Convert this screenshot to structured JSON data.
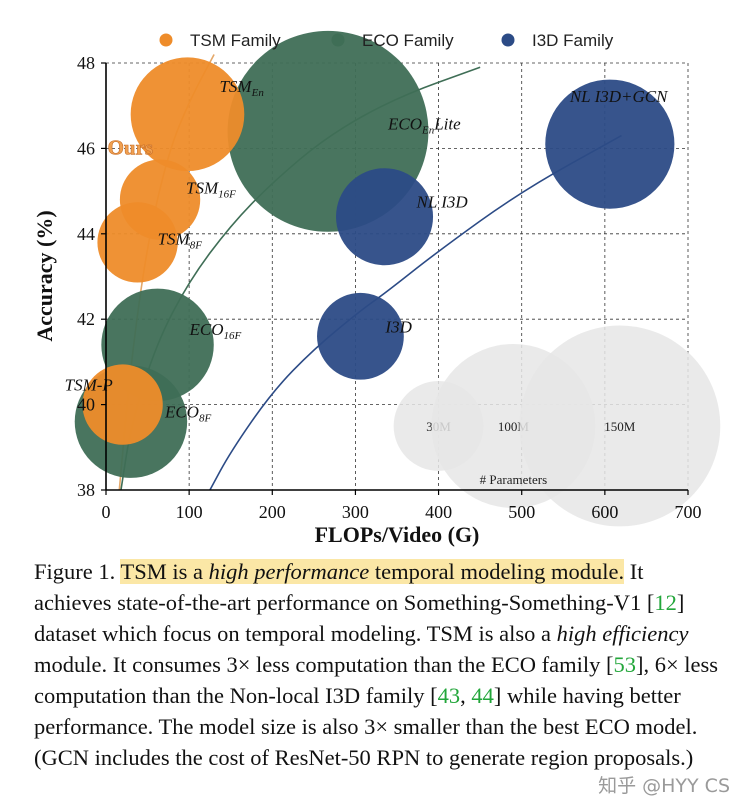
{
  "chart_data": {
    "type": "scatter",
    "xlabel": "FLOPs/Video (G)",
    "ylabel": "Accuracy (%)",
    "xlim": [
      0,
      700
    ],
    "ylim": [
      38,
      48
    ],
    "xticks": [
      0,
      100,
      200,
      300,
      400,
      500,
      600,
      700
    ],
    "yticks": [
      38,
      40,
      42,
      44,
      46,
      48
    ],
    "grid": true,
    "legend_position": "top",
    "series": [
      {
        "name": "TSM Family",
        "color": "#ee8c2a",
        "points": [
          {
            "label": "TSM-P",
            "label_main": "TSM-P",
            "label_sub": "",
            "x": 20,
            "y": 40.0,
            "params_m": 24
          },
          {
            "label": "TSM8F",
            "label_main": "TSM",
            "label_sub": "8F",
            "x": 38,
            "y": 43.8,
            "params_m": 24
          },
          {
            "label": "TSM16F",
            "label_main": "TSM",
            "label_sub": "16F",
            "x": 65,
            "y": 44.8,
            "params_m": 24
          },
          {
            "label": "TSMEn",
            "label_main": "TSM",
            "label_sub": "En",
            "x": 98,
            "y": 46.8,
            "params_m": 48
          }
        ]
      },
      {
        "name": "ECO Family",
        "color": "#3f6e56",
        "points": [
          {
            "label": "ECO8F",
            "label_main": "ECO",
            "label_sub": "8F",
            "x": 30,
            "y": 39.6,
            "params_m": 47
          },
          {
            "label": "ECO16F",
            "label_main": "ECO",
            "label_sub": "16F",
            "x": 62,
            "y": 41.4,
            "params_m": 47
          },
          {
            "label": "ECOEnLite",
            "label_main": "ECO",
            "label_sub": "En",
            "label_tail": "Lite",
            "x": 267,
            "y": 46.4,
            "params_m": 150
          }
        ]
      },
      {
        "name": "I3D Family",
        "color": "#2c4b86",
        "points": [
          {
            "label": "I3D",
            "label_main": "I3D",
            "label_sub": "",
            "x": 306,
            "y": 41.6,
            "params_m": 28
          },
          {
            "label": "NL I3D",
            "label_main": "NL I3D",
            "label_sub": "",
            "x": 335,
            "y": 44.4,
            "params_m": 35
          },
          {
            "label": "NL I3D+GCN",
            "label_main": "NL I3D+GCN",
            "label_sub": "",
            "x": 606,
            "y": 46.1,
            "params_m": 62
          }
        ]
      }
    ],
    "trend_curves": [
      {
        "family": "TSM Family",
        "x": [
          16,
          30,
          50,
          75,
          100,
          130
        ],
        "y": [
          38.0,
          41.0,
          43.8,
          45.9,
          47.1,
          48.2
        ]
      },
      {
        "family": "ECO Family",
        "x": [
          18,
          30,
          60,
          100,
          150,
          200,
          267,
          350,
          450
        ],
        "y": [
          38.0,
          39.5,
          41.4,
          42.9,
          44.2,
          45.2,
          46.3,
          47.2,
          47.9
        ]
      },
      {
        "family": "I3D Family",
        "x": [
          125,
          150,
          200,
          250,
          306,
          335,
          400,
          500,
          620
        ],
        "y": [
          38.0,
          38.9,
          40.3,
          41.3,
          42.2,
          42.6,
          43.6,
          45.0,
          46.3
        ]
      }
    ],
    "size_legend": {
      "title": "# Parameters",
      "items": [
        {
          "label": "30M",
          "x": 400,
          "y": 39.5,
          "params_m": 30
        },
        {
          "label": "100M",
          "x": 490,
          "y": 39.5,
          "params_m": 100
        },
        {
          "label": "150M",
          "x": 618,
          "y": 39.5,
          "params_m": 150
        }
      ]
    },
    "annotations": [
      {
        "text": "Ours",
        "x": 38,
        "y": 46.0
      }
    ]
  },
  "caption": {
    "figure_label": "Figure 1.",
    "highlight_pre": "TSM is a ",
    "highlight_em": "high performance",
    "highlight_post": " temporal modeling module.",
    "s1": " It achieves state-of-the-art performance on Something-Something-V1 [",
    "ref_12": "12",
    "s2": "] dataset which focus on temporal modeling. TSM is also a ",
    "em_efficiency": "high efficiency",
    "s3": " module. It consumes 3× less computation than the ECO family [",
    "ref_53": "53",
    "s4": "], 6× less computation than the Non-local I3D family [",
    "ref_43": "43",
    "s5": ", ",
    "ref_44": "44",
    "s6": "] while having better performance. The model size is also 3× smaller than the best ECO model. (GCN includes the cost of ResNet-50 RPN to generate region proposals.)"
  },
  "watermark": "知乎 @HYY CS"
}
